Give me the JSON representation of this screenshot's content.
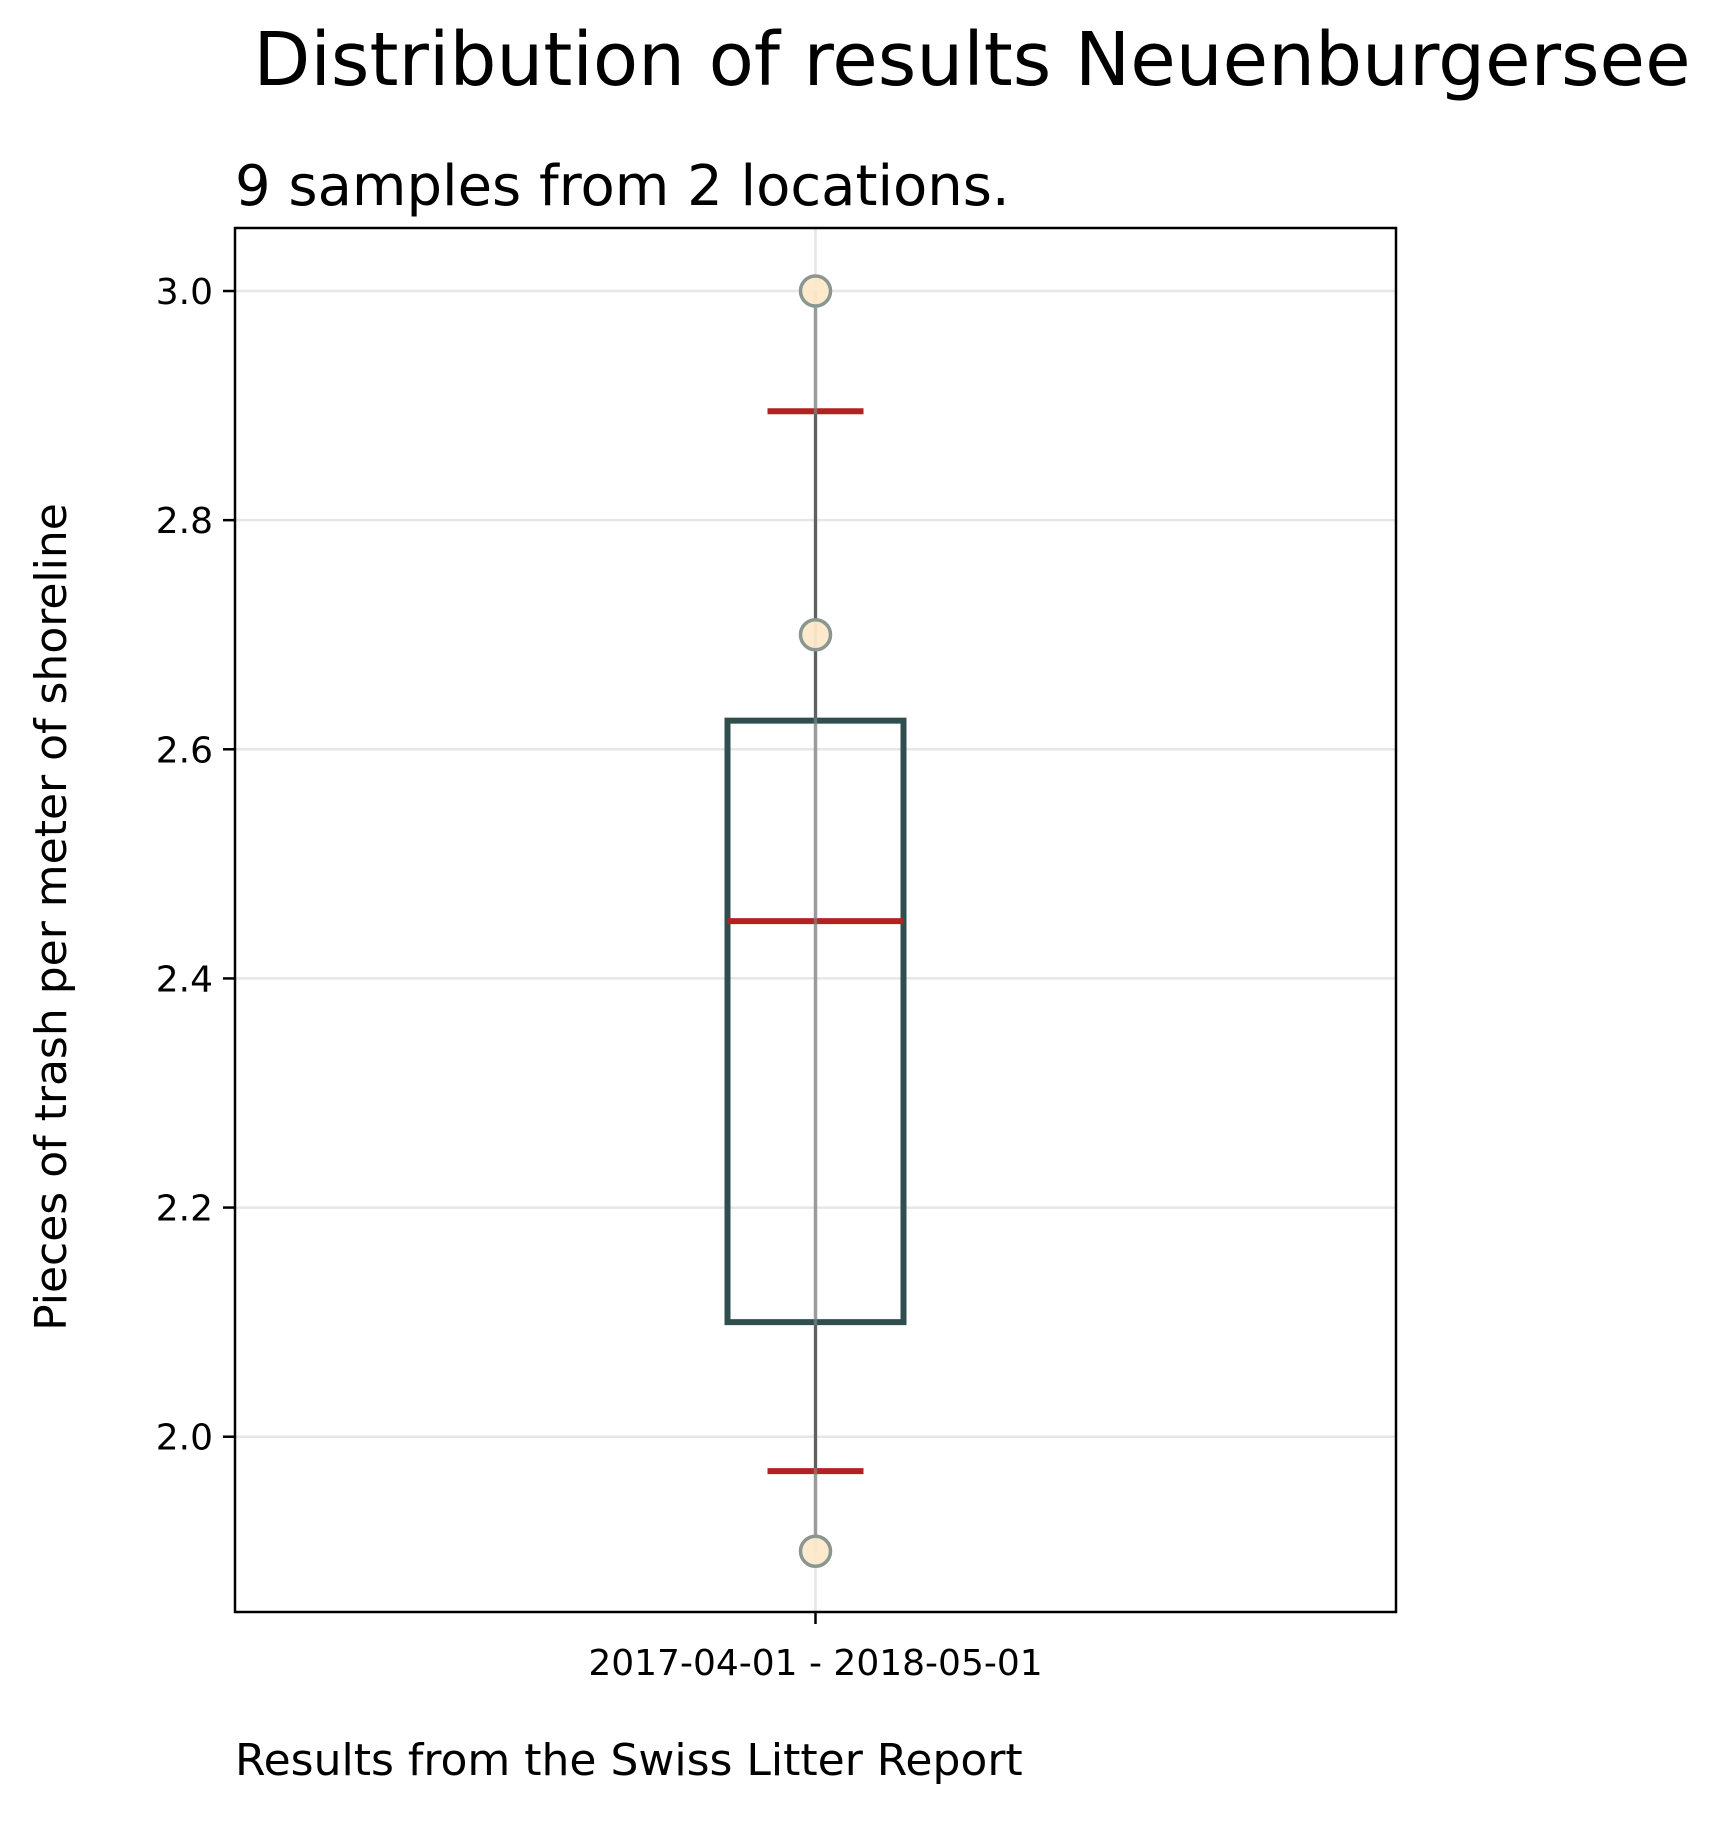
{
  "chart_data": {
    "type": "box",
    "title": "Distribution of results Neuenburgersee",
    "subtitle": "9 samples from 2 locations.",
    "ylabel": "Pieces of trash per meter of shoreline",
    "xlabel": "Results from the Swiss Litter Report",
    "categories": [
      "2017-04-01 - 2018-05-01"
    ],
    "ylim": [
      1.847,
      3.055
    ],
    "yticks": [
      2.0,
      2.2,
      2.4,
      2.6,
      2.8,
      3.0
    ],
    "ytick_labels": [
      "2.0",
      "2.2",
      "2.4",
      "2.6",
      "2.8",
      "3.0"
    ],
    "grid": true,
    "box": {
      "q1": 2.1,
      "median": 2.45,
      "q3": 2.625,
      "whisker_low": 1.97,
      "whisker_high": 2.895
    },
    "points": [
      3.0,
      2.7,
      1.9
    ],
    "range_line": [
      1.9,
      3.0
    ],
    "colors": {
      "box": "#2f4f4f",
      "median": "#b22222",
      "caps": "#b22222",
      "whisker": "#000000",
      "points_fill": "#fde8c8",
      "points_edge": "#8a9691",
      "grid": "#e6e6e6"
    }
  }
}
